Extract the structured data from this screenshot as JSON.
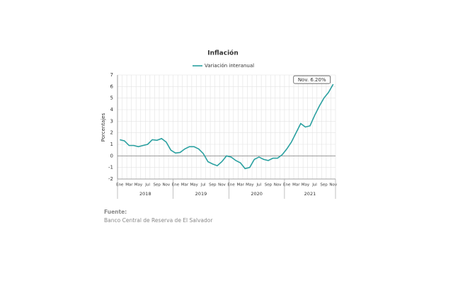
{
  "chart_data": {
    "type": "line",
    "title": "Inflación",
    "y_label": "Porcentajes",
    "annotation": "Nov. 6.20%",
    "categories": [
      "Ene",
      null,
      "Mar",
      null,
      "May",
      null,
      "Jul",
      null,
      "Sep",
      null,
      "Nov",
      null,
      "Ene",
      null,
      "Mar",
      null,
      "May",
      null,
      "Jul",
      null,
      "Sep",
      null,
      "Nov",
      null,
      "Ene",
      null,
      "Mar",
      null,
      "May",
      null,
      "Jul",
      null,
      "Sep",
      null,
      "Nov",
      null,
      "Ene",
      null,
      "Mar",
      null,
      "May",
      null,
      "Jul",
      null,
      "Sep",
      null,
      "Nov"
    ],
    "x_groups": [
      "2018",
      "2019",
      "2020",
      "2021"
    ],
    "series": [
      {
        "name": "Variación interanual",
        "color": "#2aa0a0",
        "values": [
          1.4,
          1.3,
          0.9,
          0.9,
          0.8,
          0.9,
          1.0,
          1.4,
          1.35,
          1.5,
          1.2,
          0.5,
          0.25,
          0.3,
          0.6,
          0.8,
          0.8,
          0.6,
          0.2,
          -0.5,
          -0.7,
          -0.85,
          -0.5,
          0.0,
          -0.1,
          -0.4,
          -0.6,
          -1.1,
          -1.0,
          -0.3,
          -0.1,
          -0.3,
          -0.4,
          -0.2,
          -0.2,
          0.1,
          0.6,
          1.2,
          2.0,
          2.8,
          2.5,
          2.6,
          3.5,
          4.3,
          5.0,
          5.5,
          6.2
        ]
      }
    ],
    "ylim": [
      -2,
      7
    ],
    "yticks": [
      -2,
      -1,
      0,
      1,
      2,
      3,
      4,
      5,
      6,
      7
    ],
    "grid": true,
    "source_label": "Fuente:",
    "source": "Banco Central de Reserva de El Salvador"
  }
}
